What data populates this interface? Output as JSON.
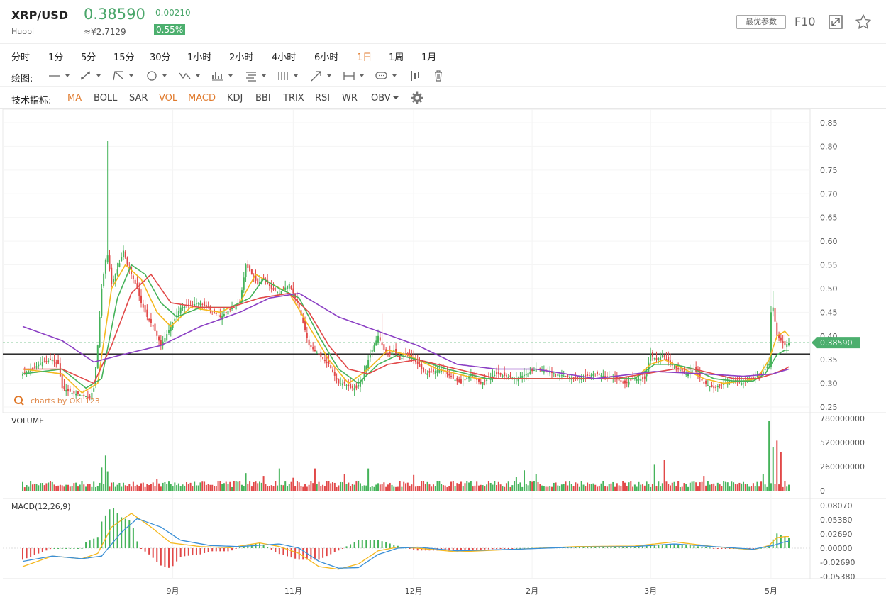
{
  "header": {
    "symbol": "XRP/USD",
    "exchange": "Huobi",
    "price": "0.38590",
    "cny_price": "≈¥2.7129",
    "change": "0.00210",
    "change_pct": "0.55%",
    "best_params_label": "最优参数",
    "f10_label": "F10",
    "up_color": "#4caf6e",
    "accent_color": "#e07a2c"
  },
  "timeframes": [
    {
      "label": "分时",
      "active": false
    },
    {
      "label": "1分",
      "active": false
    },
    {
      "label": "5分",
      "active": false
    },
    {
      "label": "15分",
      "active": false
    },
    {
      "label": "30分",
      "active": false
    },
    {
      "label": "1小时",
      "active": false
    },
    {
      "label": "2小时",
      "active": false
    },
    {
      "label": "4小时",
      "active": false
    },
    {
      "label": "6小时",
      "active": false
    },
    {
      "label": "1日",
      "active": true
    },
    {
      "label": "1周",
      "active": false
    },
    {
      "label": "1月",
      "active": false
    }
  ],
  "drawing": {
    "label": "绘图:",
    "tools": [
      "line-tool-icon",
      "ray-tool-icon",
      "trend-tool-icon",
      "shape-tool-icon",
      "wave-tool-icon",
      "pattern-tool-icon",
      "fib-tool-icon",
      "gann-tool-icon",
      "arrow-tool-icon",
      "measure-tool-icon",
      "text-tool-icon",
      "bar-tool-icon",
      "trash-icon"
    ]
  },
  "indicators": {
    "label": "技术指标:",
    "items": [
      {
        "label": "MA",
        "active": true
      },
      {
        "label": "BOLL",
        "active": false
      },
      {
        "label": "SAR",
        "active": false
      },
      {
        "label": "VOL",
        "active": true
      },
      {
        "label": "MACD",
        "active": true
      },
      {
        "label": "KDJ",
        "active": false
      },
      {
        "label": "BBI",
        "active": false
      },
      {
        "label": "TRIX",
        "active": false
      },
      {
        "label": "RSI",
        "active": false
      },
      {
        "label": "WR",
        "active": false
      },
      {
        "label": "OBV",
        "active": false
      }
    ]
  },
  "chart_data": {
    "type": "candlestick",
    "watermark": "charts by OKL123",
    "current_price_label": "0.38590",
    "current_price": 0.3859,
    "horizontal_line": 0.362,
    "price_axis": {
      "ticks": [
        "0.85",
        "0.80",
        "0.75",
        "0.70",
        "0.65",
        "0.60",
        "0.55",
        "0.50",
        "0.45",
        "0.40",
        "0.35",
        "0.30",
        "0.25"
      ],
      "min": 0.25,
      "max": 0.85
    },
    "x_labels": [
      "9月",
      "11月",
      "12月",
      "2月",
      "3月",
      "5月"
    ],
    "x_label_days": [
      76,
      137,
      198,
      258,
      318,
      379
    ],
    "price_series": {
      "x": [
        0,
        5,
        10,
        15,
        18,
        20,
        25,
        30,
        34,
        36,
        38,
        40,
        42,
        43,
        45,
        48,
        51,
        53,
        55,
        58,
        60,
        63,
        66,
        70,
        75,
        80,
        90,
        100,
        110,
        113,
        116,
        119,
        122,
        126,
        130,
        135,
        140,
        145,
        150,
        155,
        160,
        163,
        166,
        169,
        172,
        175,
        178,
        180,
        183,
        186,
        188,
        191,
        194,
        197,
        200,
        204,
        208,
        212,
        218,
        222,
        227,
        232,
        240,
        250,
        260,
        270,
        280,
        290,
        300,
        305,
        310,
        315,
        318,
        321,
        324,
        328,
        332,
        336,
        340,
        345,
        350,
        355,
        360,
        365,
        370,
        374,
        378,
        379,
        380,
        382,
        384,
        386,
        388
      ],
      "y": [
        0.32,
        0.33,
        0.345,
        0.35,
        0.34,
        0.29,
        0.28,
        0.275,
        0.27,
        0.29,
        0.38,
        0.5,
        0.56,
        0.57,
        0.51,
        0.54,
        0.58,
        0.55,
        0.53,
        0.5,
        0.47,
        0.44,
        0.42,
        0.38,
        0.42,
        0.46,
        0.47,
        0.44,
        0.47,
        0.55,
        0.53,
        0.51,
        0.52,
        0.5,
        0.49,
        0.51,
        0.46,
        0.38,
        0.36,
        0.34,
        0.3,
        0.3,
        0.29,
        0.29,
        0.31,
        0.35,
        0.38,
        0.4,
        0.37,
        0.36,
        0.37,
        0.35,
        0.36,
        0.355,
        0.34,
        0.32,
        0.325,
        0.33,
        0.31,
        0.3,
        0.32,
        0.3,
        0.32,
        0.31,
        0.33,
        0.32,
        0.31,
        0.32,
        0.31,
        0.3,
        0.31,
        0.31,
        0.36,
        0.35,
        0.36,
        0.34,
        0.33,
        0.32,
        0.33,
        0.3,
        0.29,
        0.3,
        0.305,
        0.3,
        0.31,
        0.32,
        0.34,
        0.45,
        0.46,
        0.4,
        0.39,
        0.38,
        0.386
      ]
    },
    "ma_series": [
      {
        "color": "#f5b81e",
        "x": [
          0,
          20,
          30,
          38,
          45,
          52,
          60,
          68,
          75,
          85,
          100,
          110,
          118,
          126,
          135,
          145,
          155,
          165,
          175,
          185,
          195,
          210,
          230,
          260,
          290,
          310,
          318,
          325,
          335,
          345,
          355,
          365,
          372,
          378,
          382,
          386,
          388
        ],
        "y": [
          0.33,
          0.32,
          0.28,
          0.3,
          0.5,
          0.55,
          0.52,
          0.45,
          0.42,
          0.46,
          0.45,
          0.47,
          0.53,
          0.51,
          0.49,
          0.42,
          0.35,
          0.3,
          0.33,
          0.37,
          0.36,
          0.33,
          0.31,
          0.31,
          0.31,
          0.31,
          0.34,
          0.35,
          0.33,
          0.31,
          0.3,
          0.305,
          0.31,
          0.35,
          0.4,
          0.41,
          0.4
        ]
      },
      {
        "color": "#45b35a",
        "x": [
          0,
          20,
          32,
          40,
          48,
          55,
          62,
          70,
          78,
          90,
          105,
          115,
          122,
          130,
          140,
          150,
          160,
          170,
          180,
          190,
          200,
          215,
          235,
          260,
          290,
          310,
          320,
          330,
          340,
          350,
          360,
          370,
          376,
          382,
          386,
          388
        ],
        "y": [
          0.32,
          0.33,
          0.29,
          0.31,
          0.48,
          0.55,
          0.53,
          0.47,
          0.44,
          0.46,
          0.46,
          0.48,
          0.52,
          0.5,
          0.48,
          0.4,
          0.33,
          0.3,
          0.34,
          0.36,
          0.35,
          0.33,
          0.31,
          0.31,
          0.31,
          0.31,
          0.34,
          0.34,
          0.33,
          0.31,
          0.305,
          0.305,
          0.32,
          0.36,
          0.37,
          0.37
        ]
      },
      {
        "color": "#e14848",
        "x": [
          0,
          20,
          36,
          45,
          55,
          65,
          75,
          90,
          105,
          120,
          135,
          145,
          155,
          165,
          175,
          185,
          200,
          220,
          240,
          270,
          300,
          315,
          330,
          340,
          350,
          360,
          372,
          380,
          386,
          388
        ],
        "y": [
          0.33,
          0.33,
          0.3,
          0.38,
          0.49,
          0.53,
          0.47,
          0.46,
          0.46,
          0.48,
          0.49,
          0.45,
          0.38,
          0.33,
          0.32,
          0.34,
          0.35,
          0.33,
          0.31,
          0.31,
          0.31,
          0.32,
          0.33,
          0.33,
          0.32,
          0.31,
          0.31,
          0.32,
          0.33,
          0.335
        ]
      },
      {
        "color": "#8b3fc4",
        "x": [
          0,
          20,
          36,
          50,
          70,
          90,
          110,
          125,
          140,
          160,
          180,
          200,
          220,
          240,
          260,
          290,
          320,
          345,
          365,
          380,
          388
        ],
        "y": [
          0.42,
          0.39,
          0.345,
          0.36,
          0.38,
          0.42,
          0.45,
          0.48,
          0.49,
          0.44,
          0.41,
          0.38,
          0.34,
          0.33,
          0.33,
          0.31,
          0.325,
          0.32,
          0.315,
          0.32,
          0.33
        ]
      }
    ],
    "volume": {
      "label": "VOLUME",
      "ticks": [
        "780000000",
        "520000000",
        "260000000",
        "0"
      ],
      "max": 780000000,
      "spikes_x": [
        40,
        42,
        43,
        68,
        113,
        122,
        130,
        137,
        148,
        163,
        175,
        198,
        250,
        254,
        260,
        320,
        325,
        345,
        375,
        378,
        380,
        382,
        384
      ],
      "spikes_y": [
        250000000,
        380000000,
        210000000,
        130000000,
        190000000,
        160000000,
        240000000,
        140000000,
        240000000,
        180000000,
        240000000,
        170000000,
        150000000,
        220000000,
        180000000,
        280000000,
        330000000,
        160000000,
        180000000,
        750000000,
        470000000,
        540000000,
        420000000
      ],
      "base_level": 75000000
    },
    "macd": {
      "label": "MACD(12,26,9)",
      "ticks": [
        "0.08070",
        "0.05380",
        "0.02690",
        "0.00000",
        "-0.02690",
        "-0.05380"
      ],
      "min": -0.0538,
      "max": 0.0807,
      "dif": {
        "x": [
          0,
          15,
          30,
          38,
          45,
          55,
          65,
          75,
          90,
          105,
          120,
          130,
          140,
          150,
          160,
          170,
          180,
          190,
          200,
          220,
          250,
          280,
          310,
          330,
          350,
          370,
          378,
          382,
          386,
          388
        ],
        "y": [
          -0.035,
          -0.015,
          -0.02,
          -0.01,
          0.04,
          0.066,
          0.04,
          0.01,
          0.003,
          0.001,
          0.01,
          0.003,
          -0.01,
          -0.035,
          -0.04,
          -0.03,
          -0.005,
          0.002,
          0.0,
          -0.007,
          -0.002,
          0.003,
          0.004,
          0.012,
          0.003,
          -0.003,
          0.005,
          0.02,
          0.022,
          0.022
        ]
      },
      "dea": {
        "x": [
          0,
          15,
          30,
          40,
          50,
          58,
          70,
          80,
          95,
          110,
          130,
          140,
          150,
          160,
          170,
          180,
          190,
          200,
          220,
          250,
          280,
          310,
          330,
          350,
          370,
          380,
          386,
          388
        ],
        "y": [
          -0.025,
          -0.015,
          -0.02,
          -0.015,
          0.03,
          0.056,
          0.04,
          0.015,
          0.005,
          0.003,
          0.008,
          0.0,
          -0.025,
          -0.038,
          -0.037,
          -0.012,
          0.0,
          0.002,
          -0.005,
          -0.002,
          0.002,
          0.003,
          0.008,
          0.003,
          -0.002,
          0.005,
          0.012,
          0.013
        ]
      }
    }
  }
}
